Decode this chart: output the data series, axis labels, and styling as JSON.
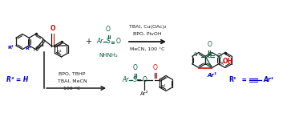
{
  "background_color": "#ffffff",
  "fig_width": 3.78,
  "fig_height": 1.46,
  "dpi": 100,
  "black": "#1a1a1a",
  "green": "#006040",
  "red": "#cc1100",
  "blue": "#0000cc",
  "cond1_lines": [
    "TBAI, Cu(OAc)₂",
    "BPO, PivOH",
    "MeCN, 100 °C"
  ],
  "cond2_lines": [
    "BPO, TBHP",
    "TBAI, MeCN",
    "100 °C"
  ]
}
